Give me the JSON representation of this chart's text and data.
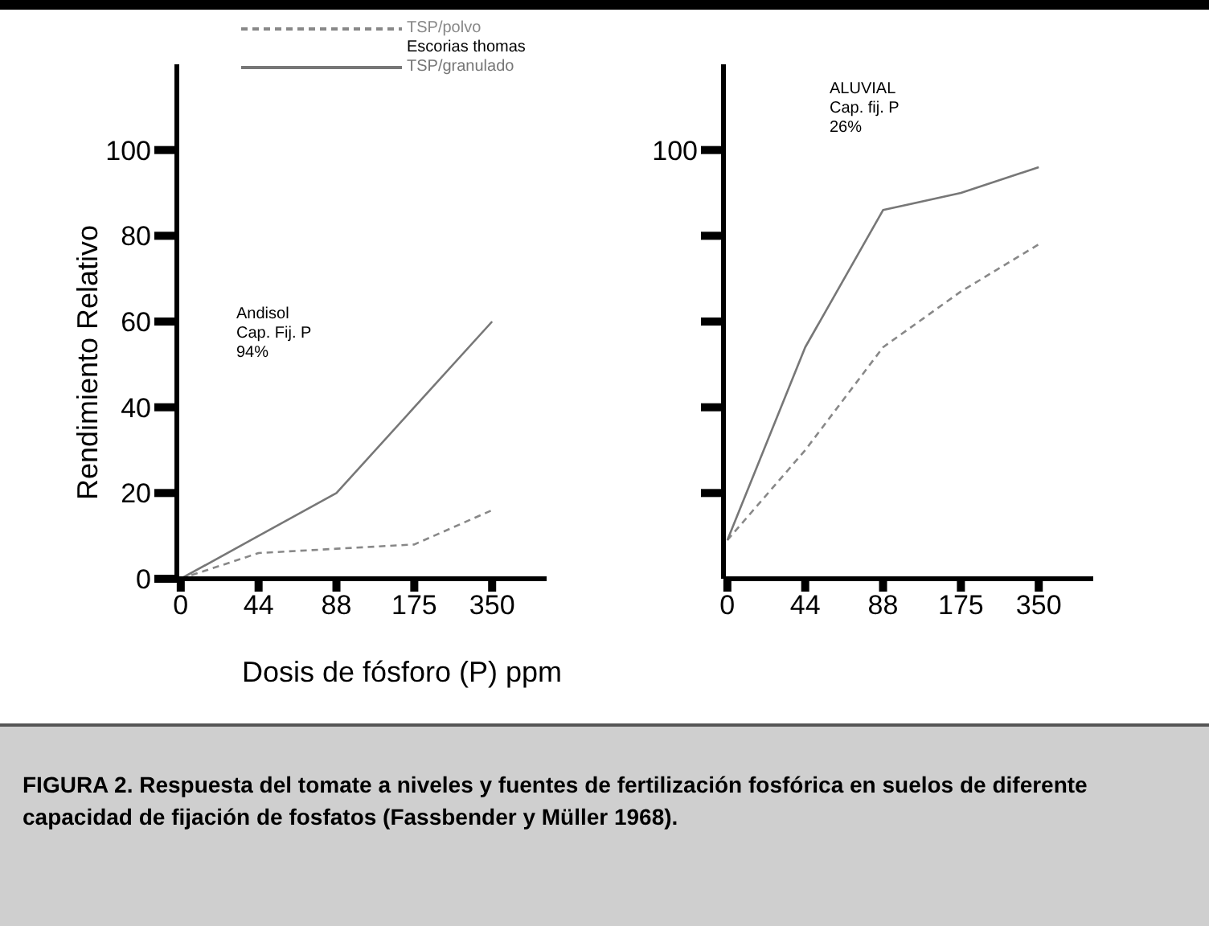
{
  "chart_data": [
    {
      "type": "line",
      "xlabel": "Dosis de fósforo (P) ppm",
      "ylabel": "Rendimiento Relativo",
      "categories": [
        "0",
        "44",
        "88",
        "175",
        "350"
      ],
      "ylim": [
        0,
        120
      ],
      "yticks": [
        0,
        20,
        40,
        60,
        80,
        100
      ],
      "legend": "top",
      "grid": false,
      "series": [
        {
          "name": "TSP/polvo",
          "color": "#888888",
          "line_style": "dashed",
          "values": [
            0,
            6,
            7,
            8,
            16
          ]
        },
        {
          "name": "TSP/granulado",
          "color": "#777777",
          "line_style": "solid",
          "values": [
            0,
            10,
            20,
            40,
            60
          ]
        }
      ],
      "annotations": [
        "Escorias thomas",
        "Andisol\nCap. Fij. P\n94%",
        "FIGURA 2. Respuesta del tomate a niveles y fuentes de fertilización fosfórica en suelos de diferente capacidad de fijación de fosfatos (Fassbender y Müller 1968)."
      ]
    },
    {
      "type": "line",
      "categories": [
        "0",
        "44",
        "88",
        "175",
        "350"
      ],
      "ylim": [
        0,
        120
      ],
      "yticks": [
        20,
        40,
        60,
        80,
        100
      ],
      "tick_labels": "x",
      "grid": false,
      "series": [
        {
          "color": "#888888",
          "line_style": "dashed",
          "values": [
            9,
            30,
            54,
            67,
            78
          ]
        },
        {
          "color": "#777777",
          "line_style": "solid",
          "values": [
            9,
            54,
            86,
            90,
            96
          ]
        }
      ],
      "annotations": [
        "ALUVIAL\nCap. fij. P\n26%",
        "100"
      ]
    }
  ]
}
